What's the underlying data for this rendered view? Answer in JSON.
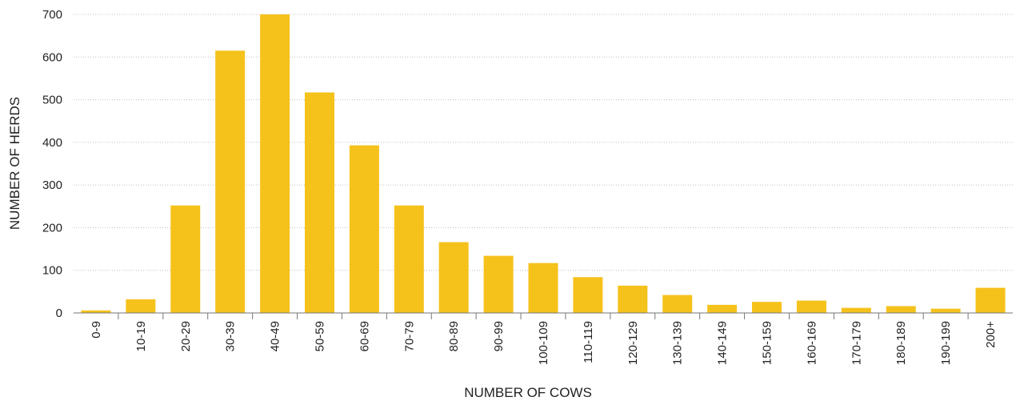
{
  "chart_data": {
    "type": "bar",
    "xlabel": "NUMBER OF COWS",
    "ylabel": "NUMBER OF HERDS",
    "ylim": [
      0,
      700
    ],
    "yticks": [
      0,
      100,
      200,
      300,
      400,
      500,
      600,
      700
    ],
    "grid": true,
    "bar_color": "#F5C21B",
    "categories": [
      "0-9",
      "10-19",
      "20-29",
      "30-39",
      "40-49",
      "50-59",
      "60-69",
      "70-79",
      "80-89",
      "90-99",
      "100-109",
      "110-119",
      "120-129",
      "130-139",
      "140-149",
      "150-159",
      "160-169",
      "170-179",
      "180-189",
      "190-199",
      "200+"
    ],
    "values": [
      6,
      32,
      252,
      615,
      700,
      517,
      393,
      252,
      166,
      134,
      117,
      84,
      64,
      42,
      19,
      26,
      29,
      12,
      16,
      10,
      59
    ]
  }
}
